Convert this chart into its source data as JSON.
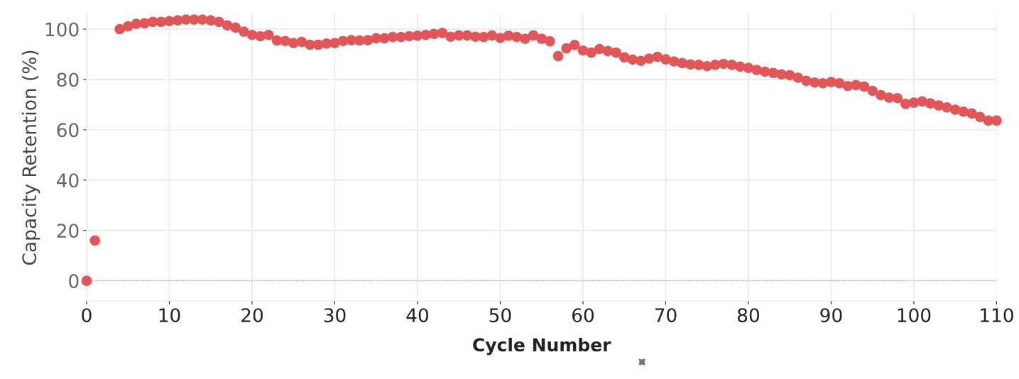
{
  "chart_data": {
    "type": "scatter",
    "xlabel": "Cycle Number",
    "ylabel": "Capacity Retention (%)",
    "xlim": [
      0,
      110
    ],
    "xticks": [
      0,
      10,
      20,
      30,
      40,
      50,
      60,
      70,
      80,
      90,
      100,
      110
    ],
    "ylim": [
      -8,
      106
    ],
    "yticks": [
      0,
      20,
      40,
      60,
      80,
      100
    ],
    "grid": true,
    "marker": "circle",
    "ref_lines": [
      {
        "axis": "y",
        "value": 0,
        "line_style": "dotted",
        "color": "#aaaaaa"
      }
    ],
    "series": [
      {
        "color": "#e15759",
        "x": [
          0,
          1,
          4,
          5,
          6,
          7,
          8,
          9,
          10,
          11,
          12,
          13,
          14,
          15,
          16,
          17,
          18,
          19,
          20,
          21,
          22,
          23,
          24,
          25,
          26,
          27,
          28,
          29,
          30,
          31,
          32,
          33,
          34,
          35,
          36,
          37,
          38,
          39,
          40,
          41,
          42,
          43,
          44,
          45,
          46,
          47,
          48,
          49,
          50,
          51,
          52,
          53,
          54,
          55,
          56,
          57,
          58,
          59,
          60,
          61,
          62,
          63,
          64,
          65,
          66,
          67,
          68,
          69,
          70,
          71,
          72,
          73,
          74,
          75,
          76,
          77,
          78,
          79,
          80,
          81,
          82,
          83,
          84,
          85,
          86,
          87,
          88,
          89,
          90,
          91,
          92,
          93,
          94,
          95,
          96,
          97,
          98,
          99,
          100,
          101,
          102,
          103,
          104,
          105,
          106,
          107,
          108,
          109,
          110
        ],
        "values": [
          0,
          16,
          100.0,
          101.1,
          102.1,
          102.3,
          102.9,
          102.9,
          103.2,
          103.5,
          103.8,
          103.8,
          103.8,
          103.5,
          102.9,
          101.5,
          100.6,
          99.0,
          97.7,
          97.2,
          97.7,
          95.5,
          95.3,
          94.5,
          94.9,
          93.8,
          93.8,
          94.3,
          94.5,
          95.3,
          95.6,
          95.5,
          95.6,
          96.4,
          96.4,
          96.9,
          96.9,
          97.2,
          97.4,
          97.7,
          98.1,
          98.5,
          97.0,
          97.5,
          97.5,
          97.0,
          96.9,
          97.5,
          96.5,
          97.4,
          96.9,
          96.2,
          97.5,
          96.2,
          95.2,
          89.3,
          92.4,
          93.7,
          91.5,
          90.7,
          92.1,
          91.3,
          90.7,
          88.8,
          87.9,
          87.4,
          88.3,
          89.0,
          88.0,
          87.2,
          86.5,
          86.0,
          85.8,
          85.3,
          85.8,
          86.2,
          85.8,
          85.1,
          84.6,
          83.8,
          83.1,
          82.6,
          82.0,
          81.7,
          80.7,
          79.5,
          78.8,
          78.5,
          79.0,
          78.5,
          77.4,
          77.8,
          77.2,
          75.5,
          73.8,
          72.8,
          72.6,
          70.3,
          70.8,
          71.3,
          70.5,
          69.7,
          68.9,
          68.0,
          67.2,
          66.5,
          65.1,
          63.7,
          63.7
        ]
      }
    ]
  }
}
